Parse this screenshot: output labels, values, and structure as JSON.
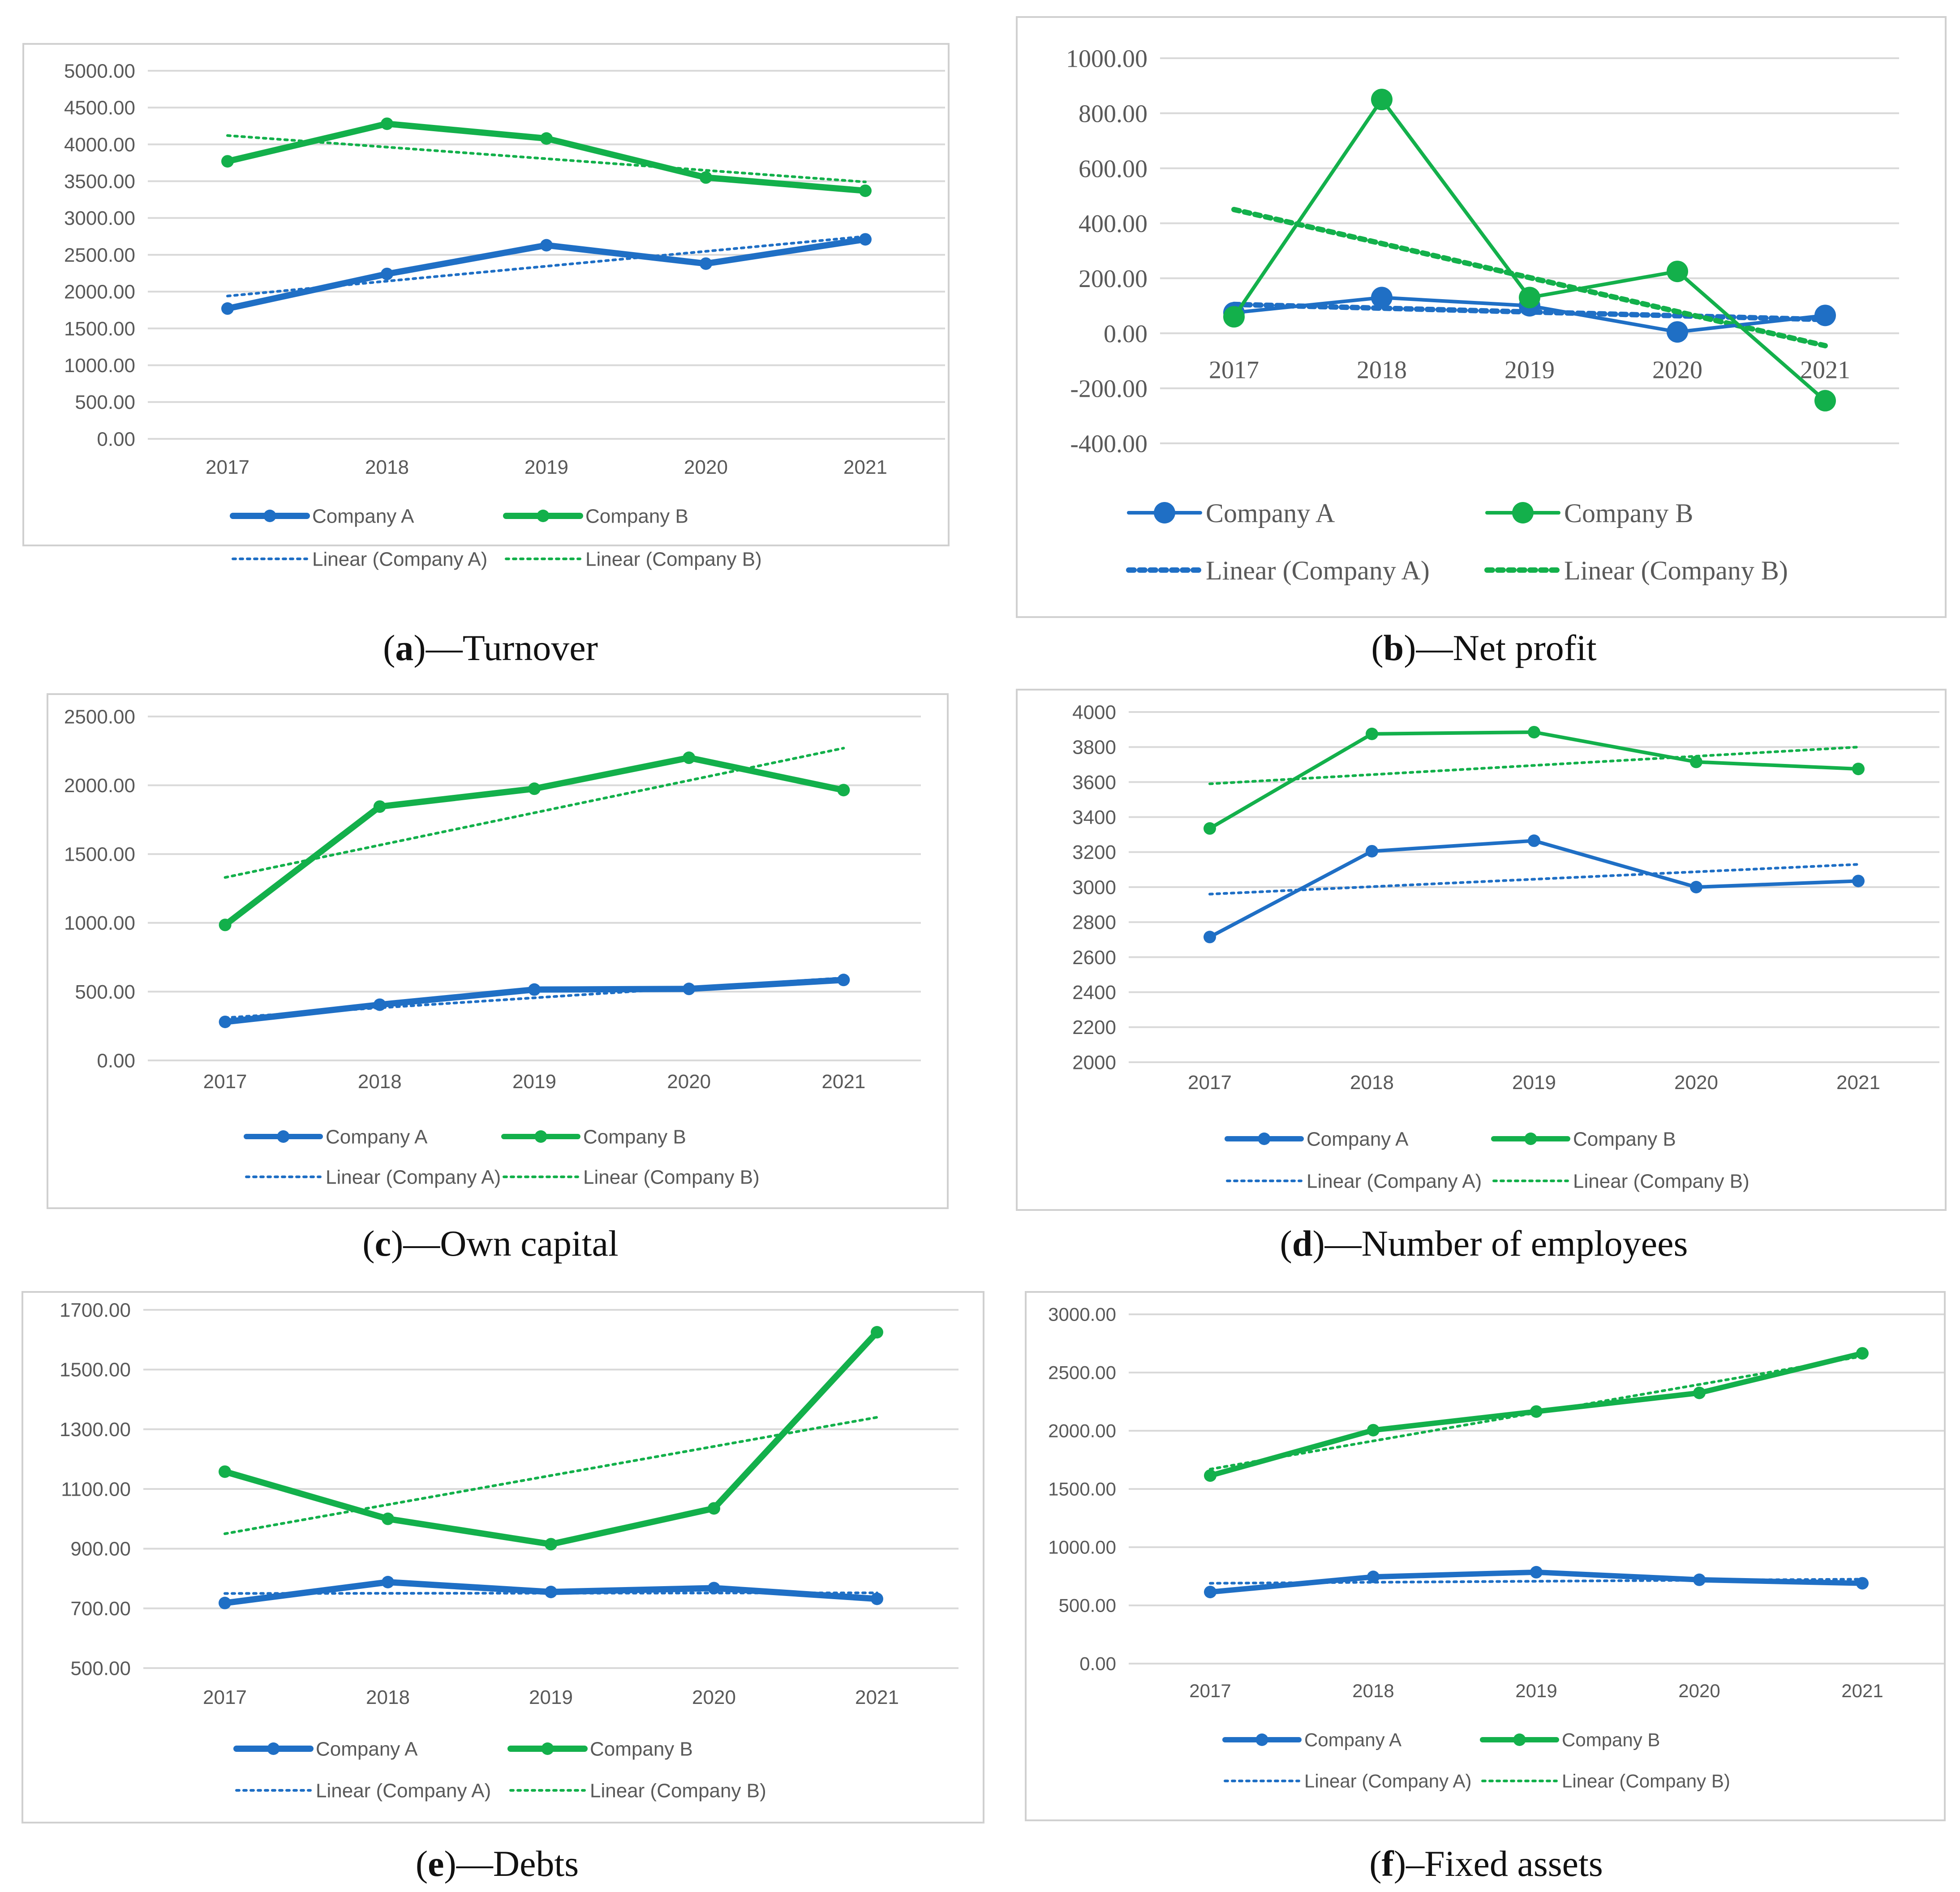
{
  "colors": {
    "company_a": "#1f6fc5",
    "company_b": "#13b04b",
    "grid": "#d9d9d9",
    "tick_text": "#595959"
  },
  "legend": {
    "company_a": "Company A",
    "company_b": "Company B",
    "linear_a": "Linear (Company A)",
    "linear_b": "Linear (Company B)"
  },
  "chart_data": [
    {
      "type": "line",
      "id": "a",
      "caption": {
        "letter": "a",
        "title": "—Turnover"
      },
      "categories": [
        "2017",
        "2018",
        "2019",
        "2020",
        "2021"
      ],
      "series": [
        {
          "name": "Company A",
          "values": [
            1770,
            2240,
            2630,
            2380,
            2710
          ]
        },
        {
          "name": "Company B",
          "values": [
            3770,
            4280,
            4080,
            3550,
            3370
          ]
        }
      ],
      "trendlines": [
        {
          "name": "Linear (Company A)",
          "start": 1940,
          "end": 2750
        },
        {
          "name": "Linear (Company B)",
          "start": 4120,
          "end": 3490
        }
      ],
      "yticks": [
        "0.00",
        "500.00",
        "1000.00",
        "1500.00",
        "2000.00",
        "2500.00",
        "3000.00",
        "3500.00",
        "4000.00",
        "4500.00",
        "5000.00"
      ],
      "ylim": [
        0,
        5000
      ]
    },
    {
      "type": "line",
      "id": "b",
      "caption": {
        "letter": "b",
        "title": "—Net profit"
      },
      "categories": [
        "2017",
        "2018",
        "2019",
        "2020",
        "2021"
      ],
      "series": [
        {
          "name": "Company A",
          "values": [
            75,
            130,
            100,
            5,
            65
          ]
        },
        {
          "name": "Company B",
          "values": [
            60,
            850,
            130,
            225,
            -245
          ]
        }
      ],
      "trendlines": [
        {
          "name": "Linear (Company A)",
          "start": 105,
          "end": 50
        },
        {
          "name": "Linear (Company B)",
          "start": 450,
          "end": -45
        }
      ],
      "yticks": [
        "-400.00",
        "-200.00",
        "0.00",
        "200.00",
        "400.00",
        "600.00",
        "800.00",
        "1000.00"
      ],
      "ylim": [
        -400,
        1000
      ]
    },
    {
      "type": "line",
      "id": "c",
      "caption": {
        "letter": "c",
        "title": "—Own capital"
      },
      "categories": [
        "2017",
        "2018",
        "2019",
        "2020",
        "2021"
      ],
      "series": [
        {
          "name": "Company A",
          "values": [
            280,
            405,
            515,
            520,
            585
          ]
        },
        {
          "name": "Company B",
          "values": [
            985,
            1845,
            1975,
            2200,
            1965
          ]
        }
      ],
      "trendlines": [
        {
          "name": "Linear (Company A)",
          "start": 310,
          "end": 600
        },
        {
          "name": "Linear (Company B)",
          "start": 1330,
          "end": 2270
        }
      ],
      "yticks": [
        "0.00",
        "500.00",
        "1000.00",
        "1500.00",
        "2000.00",
        "2500.00"
      ],
      "ylim": [
        0,
        2500
      ]
    },
    {
      "type": "line",
      "id": "d",
      "caption": {
        "letter": "d",
        "title": "—Number of employees"
      },
      "categories": [
        "2017",
        "2018",
        "2019",
        "2020",
        "2021"
      ],
      "series": [
        {
          "name": "Company A",
          "values": [
            2715,
            3205,
            3265,
            3000,
            3035
          ]
        },
        {
          "name": "Company B",
          "values": [
            3335,
            3875,
            3885,
            3715,
            3675
          ]
        }
      ],
      "trendlines": [
        {
          "name": "Linear (Company A)",
          "start": 2960,
          "end": 3130
        },
        {
          "name": "Linear (Company B)",
          "start": 3590,
          "end": 3800
        }
      ],
      "yticks": [
        "2000",
        "2200",
        "2400",
        "2600",
        "2800",
        "3000",
        "3200",
        "3400",
        "3600",
        "3800",
        "4000"
      ],
      "ylim": [
        2000,
        4000
      ]
    },
    {
      "type": "line",
      "id": "e",
      "caption": {
        "letter": "e",
        "title": "—Debts"
      },
      "categories": [
        "2017",
        "2018",
        "2019",
        "2020",
        "2021"
      ],
      "series": [
        {
          "name": "Company A",
          "values": [
            718,
            788,
            755,
            768,
            732
          ]
        },
        {
          "name": "Company B",
          "values": [
            1158,
            1000,
            915,
            1035,
            1625
          ]
        }
      ],
      "trendlines": [
        {
          "name": "Linear (Company A)",
          "start": 750,
          "end": 752
        },
        {
          "name": "Linear (Company B)",
          "start": 950,
          "end": 1340
        }
      ],
      "yticks": [
        "500.00",
        "700.00",
        "900.00",
        "1100.00",
        "1300.00",
        "1500.00",
        "1700.00"
      ],
      "ylim": [
        500,
        1700
      ]
    },
    {
      "type": "line",
      "id": "f",
      "caption": {
        "letter": "f",
        "title": "–Fixed assets"
      },
      "categories": [
        "2017",
        "2018",
        "2019",
        "2020",
        "2021"
      ],
      "series": [
        {
          "name": "Company A",
          "values": [
            615,
            745,
            785,
            720,
            690
          ]
        },
        {
          "name": "Company B",
          "values": [
            1615,
            2005,
            2165,
            2325,
            2665
          ]
        }
      ],
      "trendlines": [
        {
          "name": "Linear (Company A)",
          "start": 690,
          "end": 725
        },
        {
          "name": "Linear (Company B)",
          "start": 1670,
          "end": 2640
        }
      ],
      "yticks": [
        "0.00",
        "500.00",
        "1000.00",
        "1500.00",
        "2000.00",
        "2500.00",
        "3000.00"
      ],
      "ylim": [
        0,
        3000
      ]
    }
  ]
}
